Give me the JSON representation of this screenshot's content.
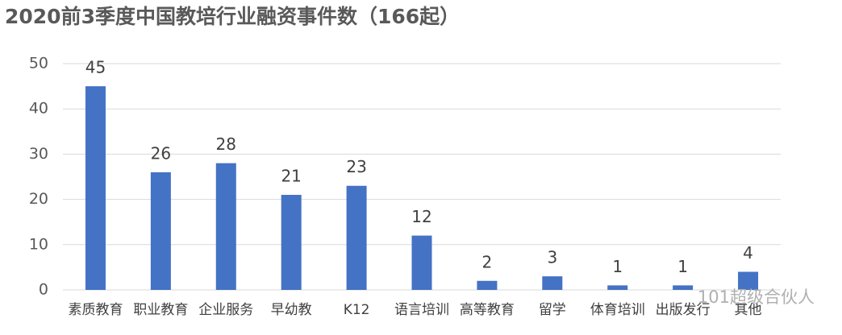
{
  "chart_data": {
    "type": "bar",
    "title": "2020前3季度中国教培行业融资事件数（166起）",
    "categories": [
      "素质教育",
      "职业教育",
      "企业服务",
      "早幼教",
      "K12",
      "语言培训",
      "高等教育",
      "留学",
      "体育培训",
      "出版发行",
      "其他"
    ],
    "values": [
      45,
      26,
      28,
      21,
      23,
      12,
      2,
      3,
      1,
      1,
      4
    ],
    "color": "#4472c4",
    "ylim": [
      0,
      50
    ],
    "yticks": [
      0,
      10,
      20,
      30,
      40,
      50
    ],
    "grid": true,
    "annotation": "101超级合伙人"
  }
}
